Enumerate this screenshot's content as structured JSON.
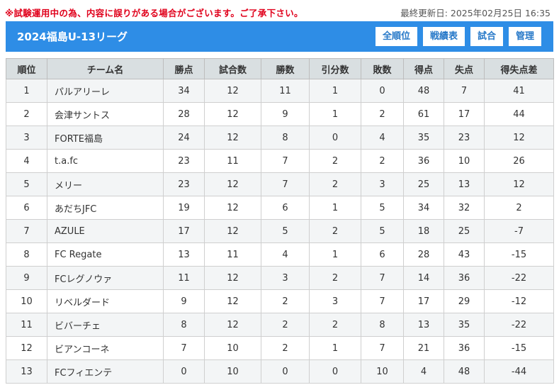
{
  "notice": "※試験運用中の為、内容に誤りがある場合がございます。ご了承下さい。",
  "updated": "最終更新日: 2025年02月25日 16:35",
  "header": {
    "title": "2024福島U-13リーグ"
  },
  "nav": [
    {
      "label": "全順位"
    },
    {
      "label": "戦績表"
    },
    {
      "label": "試合"
    },
    {
      "label": "管理"
    }
  ],
  "colors": {
    "header_bg": "#2e8de6",
    "notice_text": "#e0001b",
    "table_header_bg": "#d9dfe1",
    "row_alt_bg": "#f3f5f6"
  },
  "table": {
    "columns": [
      "順位",
      "チーム名",
      "勝点",
      "試合数",
      "勝数",
      "引分数",
      "敗数",
      "得点",
      "失点",
      "得失点差"
    ],
    "rows": [
      {
        "rank": "1",
        "team": "パルアリーレ",
        "pts": "34",
        "played": "12",
        "w": "11",
        "d": "1",
        "l": "0",
        "gf": "48",
        "ga": "7",
        "gd": "41"
      },
      {
        "rank": "2",
        "team": "会津サントス",
        "pts": "28",
        "played": "12",
        "w": "9",
        "d": "1",
        "l": "2",
        "gf": "61",
        "ga": "17",
        "gd": "44"
      },
      {
        "rank": "3",
        "team": "FORTE福島",
        "pts": "24",
        "played": "12",
        "w": "8",
        "d": "0",
        "l": "4",
        "gf": "35",
        "ga": "23",
        "gd": "12"
      },
      {
        "rank": "4",
        "team": "t.a.fc",
        "pts": "23",
        "played": "11",
        "w": "7",
        "d": "2",
        "l": "2",
        "gf": "36",
        "ga": "10",
        "gd": "26"
      },
      {
        "rank": "5",
        "team": "メリー",
        "pts": "23",
        "played": "12",
        "w": "7",
        "d": "2",
        "l": "3",
        "gf": "25",
        "ga": "13",
        "gd": "12"
      },
      {
        "rank": "6",
        "team": "あだちJFC",
        "pts": "19",
        "played": "12",
        "w": "6",
        "d": "1",
        "l": "5",
        "gf": "34",
        "ga": "32",
        "gd": "2"
      },
      {
        "rank": "7",
        "team": "AZULE",
        "pts": "17",
        "played": "12",
        "w": "5",
        "d": "2",
        "l": "5",
        "gf": "18",
        "ga": "25",
        "gd": "-7"
      },
      {
        "rank": "8",
        "team": "FC Regate",
        "pts": "13",
        "played": "11",
        "w": "4",
        "d": "1",
        "l": "6",
        "gf": "28",
        "ga": "43",
        "gd": "-15"
      },
      {
        "rank": "9",
        "team": "FCレグノウァ",
        "pts": "11",
        "played": "12",
        "w": "3",
        "d": "2",
        "l": "7",
        "gf": "14",
        "ga": "36",
        "gd": "-22"
      },
      {
        "rank": "10",
        "team": "リベルダード",
        "pts": "9",
        "played": "12",
        "w": "2",
        "d": "3",
        "l": "7",
        "gf": "17",
        "ga": "29",
        "gd": "-12"
      },
      {
        "rank": "11",
        "team": "ビバーチェ",
        "pts": "8",
        "played": "12",
        "w": "2",
        "d": "2",
        "l": "8",
        "gf": "13",
        "ga": "35",
        "gd": "-22"
      },
      {
        "rank": "12",
        "team": "ビアンコーネ",
        "pts": "7",
        "played": "10",
        "w": "2",
        "d": "1",
        "l": "7",
        "gf": "21",
        "ga": "36",
        "gd": "-15"
      },
      {
        "rank": "13",
        "team": "FCフィエンテ",
        "pts": "0",
        "played": "10",
        "w": "0",
        "d": "0",
        "l": "10",
        "gf": "4",
        "ga": "48",
        "gd": "-44"
      }
    ]
  }
}
